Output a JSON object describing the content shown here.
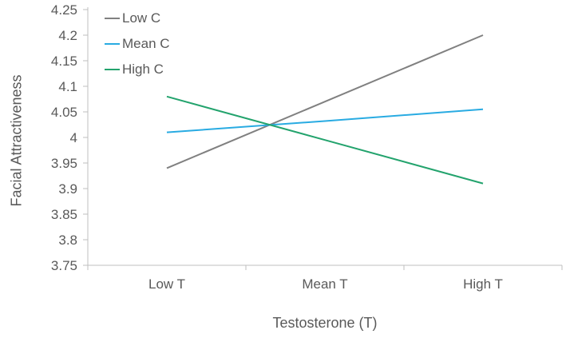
{
  "chart_data": {
    "type": "line",
    "xlabel": "Testosterone (T)",
    "ylabel": "Facial Attractiveness",
    "categories": [
      "Low T",
      "Mean T",
      "High T"
    ],
    "series": [
      {
        "name": "Low C",
        "color": "#808080",
        "values": [
          3.94,
          4.07,
          4.2
        ]
      },
      {
        "name": "Mean C",
        "color": "#29ABE2",
        "values": [
          4.01,
          4.032,
          4.055
        ]
      },
      {
        "name": "High C",
        "color": "#23A36D",
        "values": [
          4.08,
          3.995,
          3.91
        ]
      }
    ],
    "ylim": [
      3.75,
      4.25
    ],
    "ytick_step": 0.05,
    "ytick_labels": [
      "4.25",
      "4.2",
      "4.15",
      "4.1",
      "4.05",
      "4",
      "3.95",
      "3.9",
      "3.85",
      "3.8",
      "3.75"
    ],
    "grid": false,
    "legend_position": "top-left-inside",
    "axis_color": "#BFBFBF",
    "text_color": "#595959"
  }
}
